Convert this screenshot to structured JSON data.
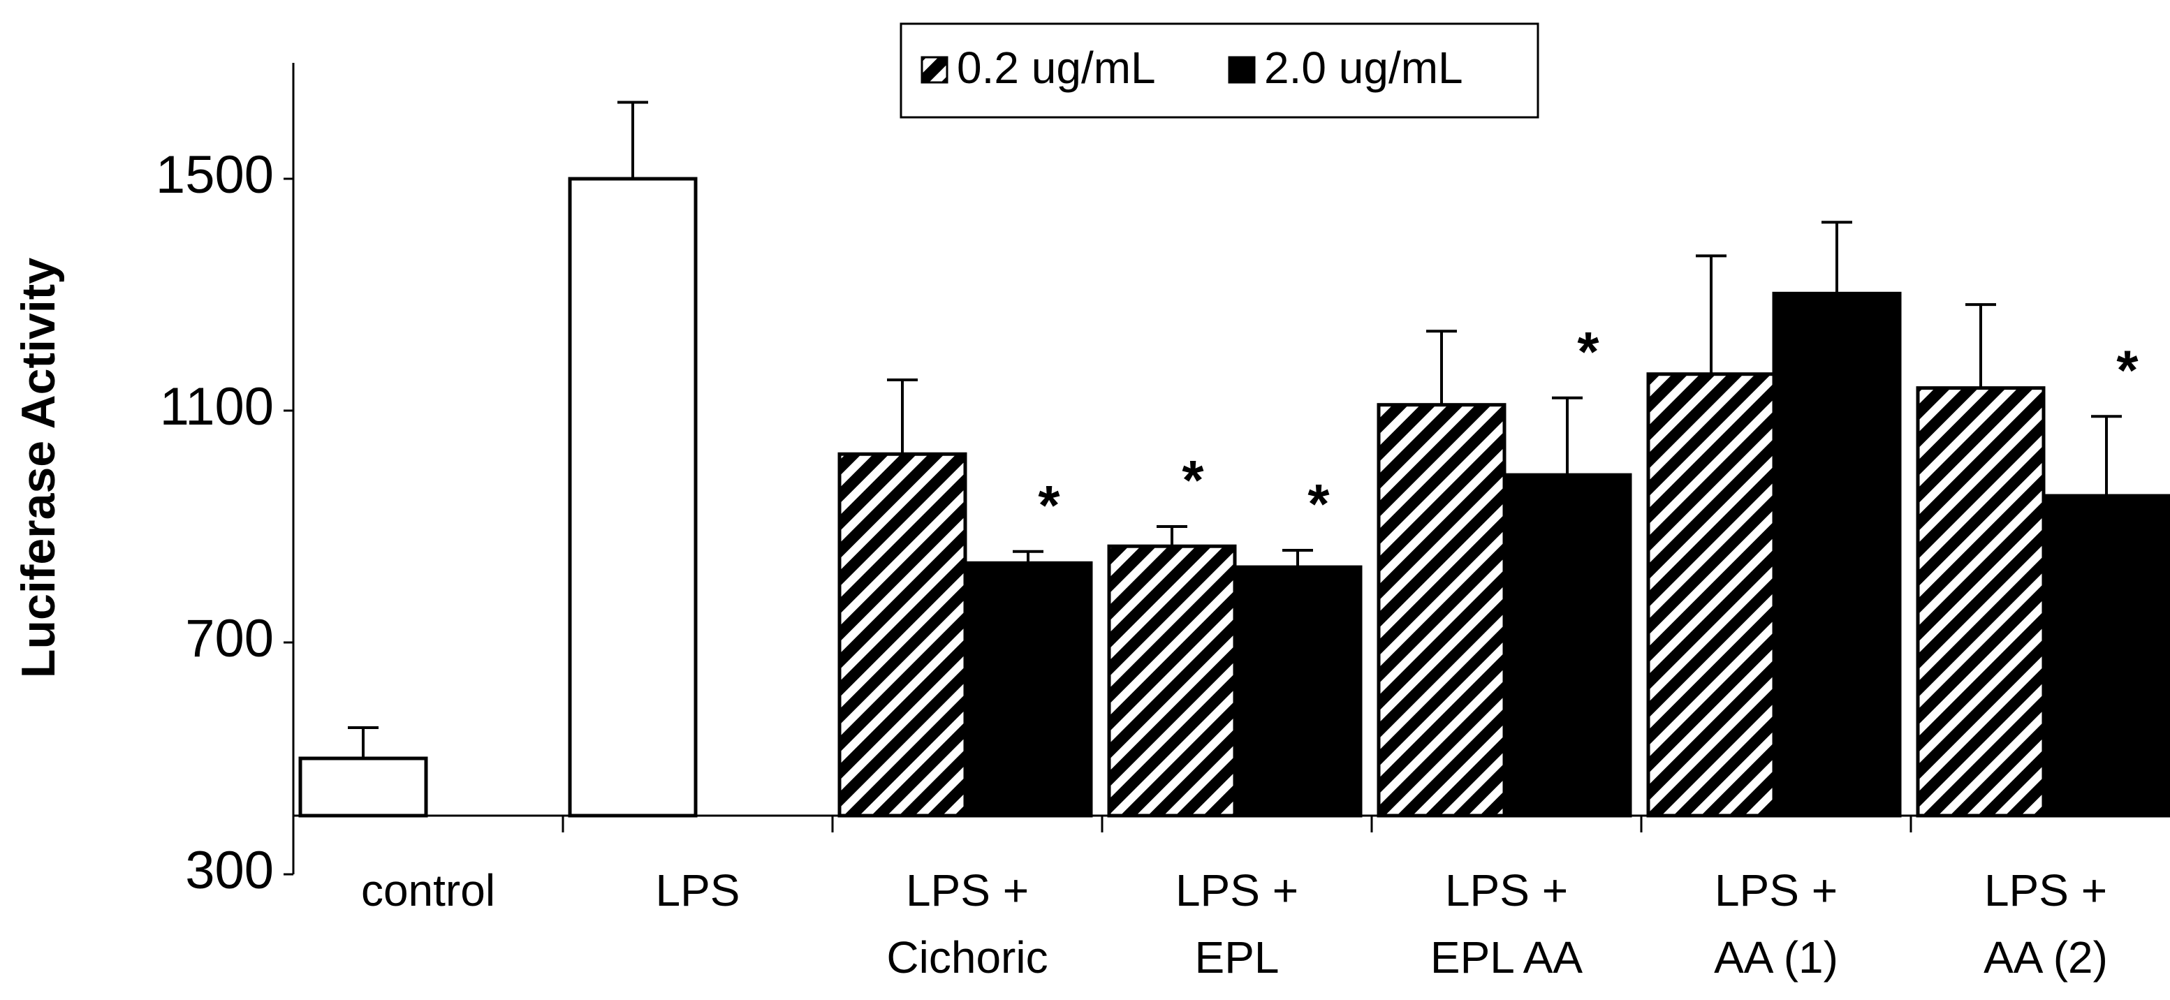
{
  "chart_data": {
    "type": "bar",
    "y_label": "Luciferase Activity",
    "categories": [
      [
        "control"
      ],
      [
        "LPS"
      ],
      [
        "LPS +",
        "Cichoric"
      ],
      [
        "LPS +",
        "EPL"
      ],
      [
        "LPS +",
        "EPL AA"
      ],
      [
        "LPS +",
        "AA (1)"
      ],
      [
        "LPS +",
        "AA (2)"
      ]
    ],
    "series": [
      {
        "color": "#ffffff",
        "values": [
          500,
          1500,
          null,
          null,
          null,
          null,
          null
        ],
        "errors": [
          53,
          132,
          null,
          null,
          null,
          null,
          null
        ]
      },
      {
        "name": "0.2 ug/mL",
        "color": "#000000",
        "hatch": true,
        "values": [
          null,
          null,
          1025,
          866,
          1110,
          1163,
          1139
        ],
        "errors": [
          null,
          null,
          128,
          34,
          127,
          204,
          144
        ],
        "significance": [
          null,
          null,
          null,
          "*",
          null,
          null,
          null
        ]
      },
      {
        "name": "2.0 ug/mL",
        "color": "#000000",
        "values": [
          null,
          null,
          837,
          830,
          989,
          1302,
          953
        ],
        "errors": [
          null,
          null,
          20,
          29,
          133,
          123,
          137
        ],
        "significance": [
          null,
          null,
          "*",
          "*",
          "*",
          null,
          "*"
        ]
      }
    ],
    "ylim": [
      300,
      1700
    ],
    "yticks": [
      300,
      700,
      1100,
      1500
    ],
    "grid": false,
    "legend": "top"
  }
}
